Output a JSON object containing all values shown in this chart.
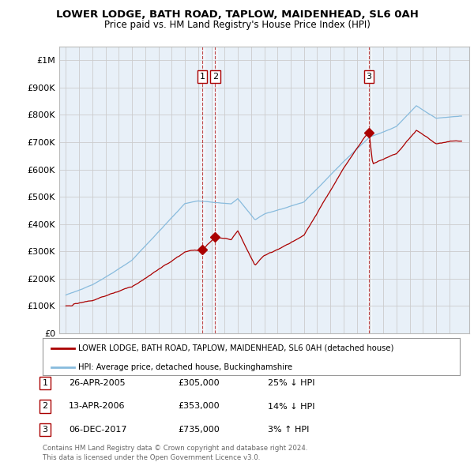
{
  "title1": "LOWER LODGE, BATH ROAD, TAPLOW, MAIDENHEAD, SL6 0AH",
  "title2": "Price paid vs. HM Land Registry's House Price Index (HPI)",
  "ylim": [
    0,
    1050000
  ],
  "yticks": [
    0,
    100000,
    200000,
    300000,
    400000,
    500000,
    600000,
    700000,
    800000,
    900000,
    1000000
  ],
  "ytick_labels": [
    "£0",
    "£100K",
    "£200K",
    "£300K",
    "£400K",
    "£500K",
    "£600K",
    "£700K",
    "£800K",
    "£900K",
    "£1M"
  ],
  "xlim_start": 1994.5,
  "xlim_end": 2025.5,
  "xticks": [
    1995,
    1996,
    1997,
    1998,
    1999,
    2000,
    2001,
    2002,
    2003,
    2004,
    2005,
    2006,
    2007,
    2008,
    2009,
    2010,
    2011,
    2012,
    2013,
    2014,
    2015,
    2016,
    2017,
    2018,
    2019,
    2020,
    2021,
    2022,
    2023,
    2024
  ],
  "sale1_x": 2005.32,
  "sale1_y": 305000,
  "sale1_label": "1",
  "sale2_x": 2006.28,
  "sale2_y": 353000,
  "sale2_label": "2",
  "sale3_x": 2017.92,
  "sale3_y": 735000,
  "sale3_label": "3",
  "red_line_color": "#aa0000",
  "blue_line_color": "#88bbdd",
  "legend1_text": "LOWER LODGE, BATH ROAD, TAPLOW, MAIDENHEAD, SL6 0AH (detached house)",
  "legend2_text": "HPI: Average price, detached house, Buckinghamshire",
  "table_rows": [
    {
      "num": "1",
      "date": "26-APR-2005",
      "price": "£305,000",
      "hpi": "25% ↓ HPI"
    },
    {
      "num": "2",
      "date": "13-APR-2006",
      "price": "£353,000",
      "hpi": "14% ↓ HPI"
    },
    {
      "num": "3",
      "date": "06-DEC-2017",
      "price": "£735,000",
      "hpi": "3% ↑ HPI"
    }
  ],
  "footer1": "Contains HM Land Registry data © Crown copyright and database right 2024.",
  "footer2": "This data is licensed under the Open Government Licence v3.0.",
  "bg_color": "#ffffff",
  "plot_bg_color": "#e8f0f8",
  "grid_color": "#cccccc"
}
